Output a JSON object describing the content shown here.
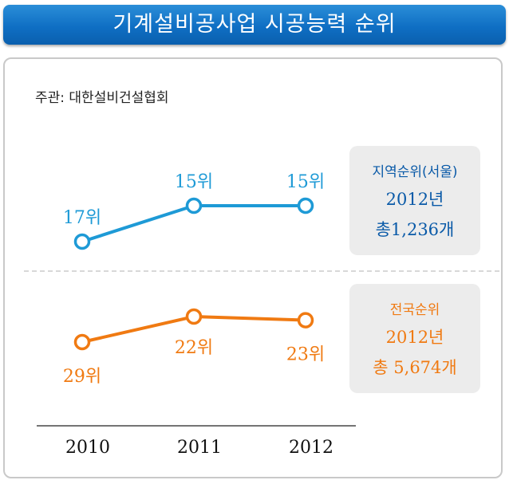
{
  "title": "기계설비공사업 시공능력 순위",
  "host": "주관: 대한설비건설협회",
  "regional_box": {
    "title": "지역순위(서울)",
    "year": "2012년",
    "total": "총1,236개"
  },
  "national_box": {
    "title": "전국순위",
    "year": "2012년",
    "total": "총 5,674개"
  },
  "colors": {
    "banner": "#0f6fc4",
    "regional": "#1e9ad6",
    "national": "#f07a12"
  },
  "chart_data": {
    "type": "line",
    "categories": [
      "2010",
      "2011",
      "2012"
    ],
    "series": [
      {
        "key": "regional",
        "values": [
          17,
          15,
          15
        ],
        "labels": [
          "17위",
          "15위",
          "15위"
        ]
      },
      {
        "key": "national",
        "values": [
          29,
          22,
          23
        ],
        "labels": [
          "29위",
          "22위",
          "23위"
        ]
      }
    ]
  }
}
